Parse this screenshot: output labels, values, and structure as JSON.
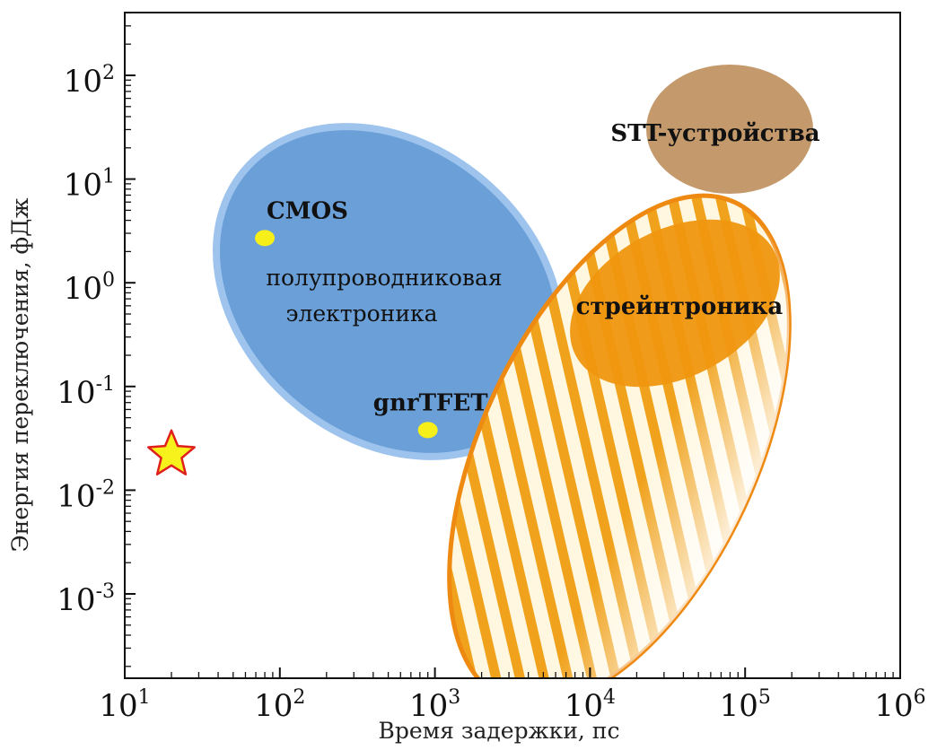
{
  "chart_data": {
    "type": "scatter",
    "xlabel": "Время задержки, пс",
    "ylabel": "Энергия переключения, фДж",
    "x_scale": "log",
    "y_scale": "log",
    "xlim": [
      10,
      1000000
    ],
    "ylim": [
      0.0002,
      400
    ],
    "x_ticks": [
      {
        "base": "10",
        "exp": "1",
        "value": 10
      },
      {
        "base": "10",
        "exp": "2",
        "value": 100
      },
      {
        "base": "10",
        "exp": "3",
        "value": 1000
      },
      {
        "base": "10",
        "exp": "4",
        "value": 10000
      },
      {
        "base": "10",
        "exp": "5",
        "value": 100000
      },
      {
        "base": "10",
        "exp": "6",
        "value": 1000000
      }
    ],
    "y_ticks": [
      {
        "base": "10",
        "exp": "2",
        "value": 100
      },
      {
        "base": "10",
        "exp": "1",
        "value": 10
      },
      {
        "base": "10",
        "exp": "0",
        "value": 1
      },
      {
        "base": "10",
        "exp": "-1",
        "value": 0.1
      },
      {
        "base": "10",
        "exp": "-2",
        "value": 0.01
      },
      {
        "base": "10",
        "exp": "-3",
        "value": 0.001
      }
    ],
    "regions": [
      {
        "name": "semiconductor-electronics",
        "label_lines": [
          "полупроводниковая",
          "электроника"
        ],
        "x_range": [
          40,
          6000
        ],
        "y_range": [
          0.02,
          20
        ],
        "color": "#6a9fd8"
      },
      {
        "name": "stt-devices",
        "label_lines": [
          "STT-устройства"
        ],
        "x_range": [
          20000,
          200000
        ],
        "y_range": [
          5,
          200
        ],
        "color": "#c49a6c"
      },
      {
        "name": "straintronics",
        "label_lines": [
          "стрейнтроника"
        ],
        "x_range": [
          10000,
          100000
        ],
        "y_range": [
          0.07,
          2
        ],
        "color": "#f0960f"
      },
      {
        "name": "straintronics-projected",
        "label_lines": [],
        "x_range": [
          700,
          100000
        ],
        "y_range": [
          0.0002,
          6
        ],
        "color": "#ee8a12"
      }
    ],
    "points": [
      {
        "name": "cmos-point",
        "label": "CMOS",
        "x": 80,
        "y": 2.7,
        "color": "#f7ef1a"
      },
      {
        "name": "gnrtfet-point",
        "label": "gnrTFET",
        "x": 900,
        "y": 0.038,
        "color": "#f7ef1a"
      }
    ],
    "star": {
      "x": 20,
      "y": 0.022,
      "fill": "#f7f21c",
      "stroke": "#e0201c"
    },
    "grid": false
  }
}
